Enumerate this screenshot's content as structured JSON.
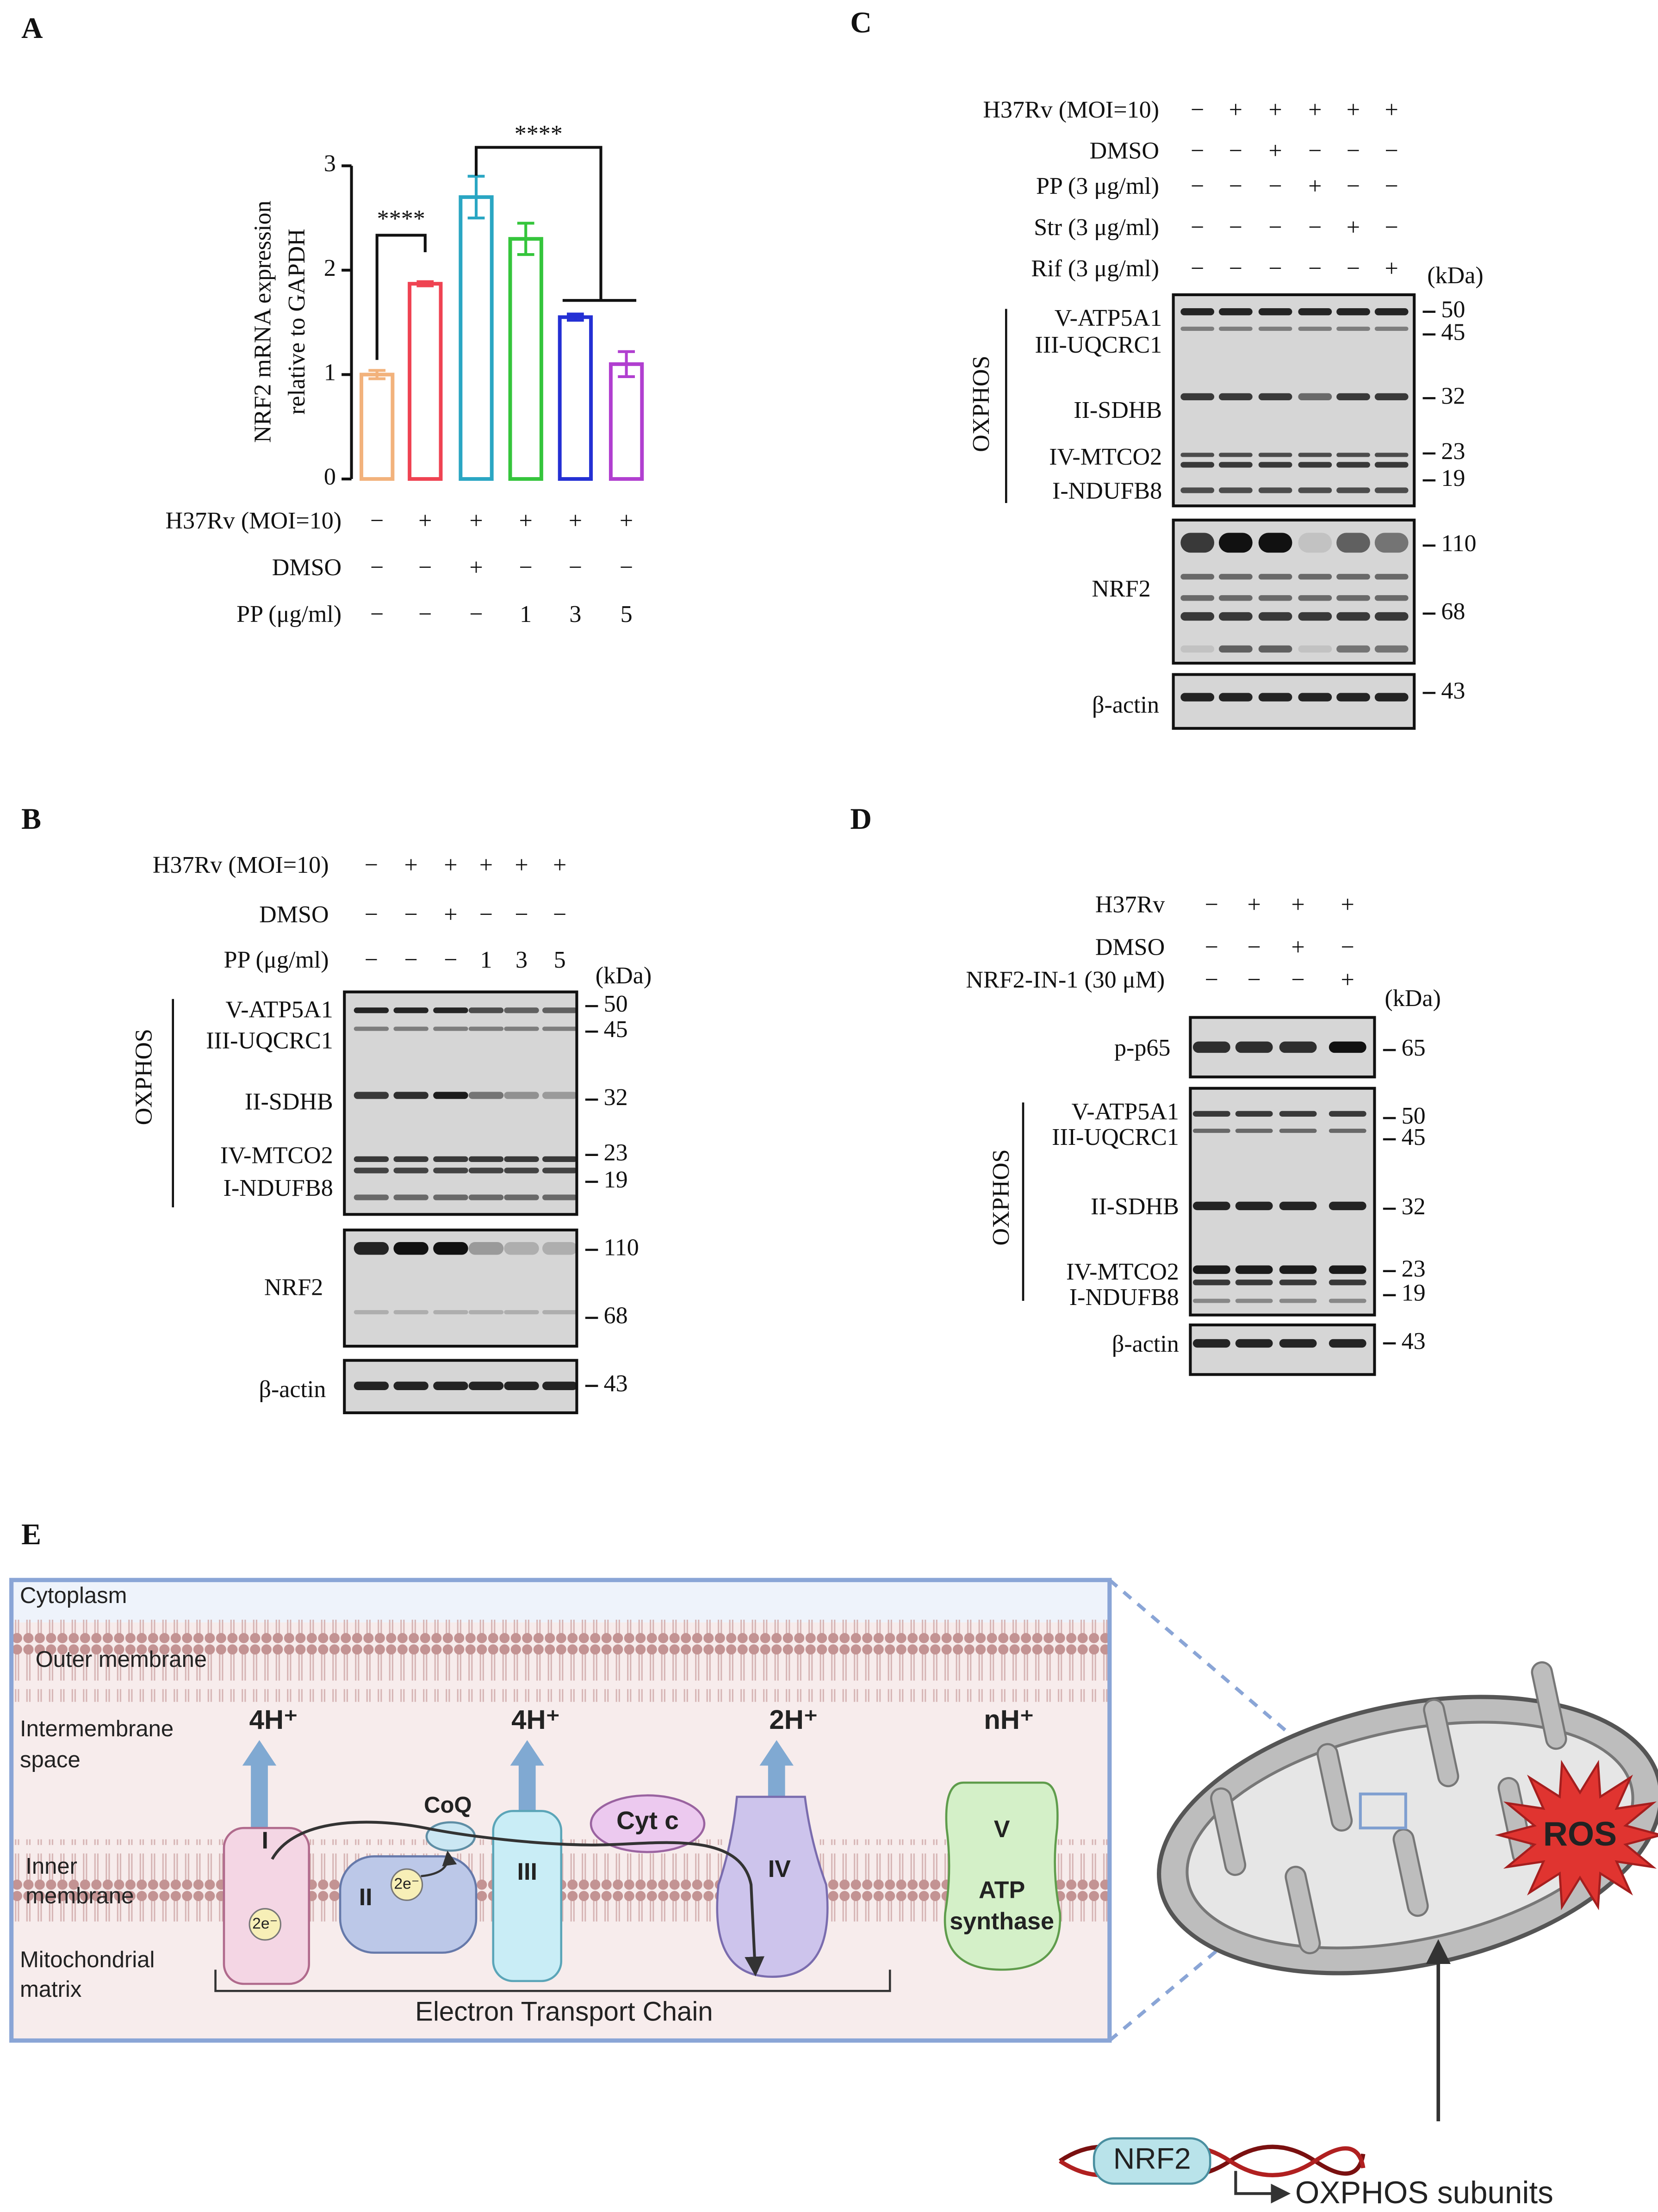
{
  "panel_labels": [
    "A",
    "B",
    "C",
    "D",
    "E"
  ],
  "chart_data": {
    "type": "bar",
    "y_label": [
      "NRF2 mRNA expression",
      "relative to GAPDH"
    ],
    "values": [
      1.0,
      1.87,
      2.7,
      2.3,
      1.55,
      1.1
    ],
    "errors": [
      0.04,
      0.02,
      0.2,
      0.15,
      0.03,
      0.12
    ],
    "colors": [
      "#f2b27c",
      "#ef4352",
      "#2aa6c3",
      "#35c53c",
      "#2430d4",
      "#b13fd0"
    ],
    "ylim": [
      0,
      3
    ],
    "yticks": [
      0,
      1,
      2,
      3
    ],
    "annotations": [
      "****",
      "****"
    ]
  },
  "panel_a": {
    "treatments": [
      {
        "label": "H37Rv (MOI=10)",
        "marks": [
          "−",
          "+",
          "+",
          "+",
          "+",
          "+"
        ]
      },
      {
        "label": "DMSO",
        "marks": [
          "−",
          "−",
          "+",
          "−",
          "−",
          "−"
        ]
      },
      {
        "label": "PP (μg/ml)",
        "marks": [
          "−",
          "−",
          "−",
          "1",
          "3",
          "5"
        ]
      }
    ]
  },
  "panel_b": {
    "treatments": [
      {
        "label": "H37Rv (MOI=10)",
        "marks": [
          "−",
          "+",
          "+",
          "+",
          "+",
          "+"
        ]
      },
      {
        "label": "DMSO",
        "marks": [
          "−",
          "−",
          "+",
          "−",
          "−",
          "−"
        ]
      },
      {
        "label": "PP (μg/ml)",
        "marks": [
          "−",
          "−",
          "−",
          "1",
          "3",
          "5"
        ]
      }
    ],
    "kda": "(kDa)",
    "group": "OXPHOS",
    "blots": [
      {
        "labels": [
          "V-ATP5A1",
          "III-UQCRC1",
          "II-SDHB",
          "IV-MTCO2",
          "I-NDUFB8"
        ],
        "markers": [
          "50",
          "45",
          "32",
          "23",
          "19"
        ]
      },
      {
        "labels": [
          "NRF2"
        ],
        "markers": [
          "110",
          "68"
        ]
      },
      {
        "labels": [
          "β-actin"
        ],
        "markers": [
          "43"
        ]
      }
    ]
  },
  "panel_c": {
    "treatments": [
      {
        "label": "H37Rv (MOI=10)",
        "marks": [
          "−",
          "+",
          "+",
          "+",
          "+",
          "+"
        ]
      },
      {
        "label": "DMSO",
        "marks": [
          "−",
          "−",
          "+",
          "−",
          "−",
          "−"
        ]
      },
      {
        "label": "PP (3 μg/ml)",
        "marks": [
          "−",
          "−",
          "−",
          "+",
          "−",
          "−"
        ]
      },
      {
        "label": "Str (3 μg/ml)",
        "marks": [
          "−",
          "−",
          "−",
          "−",
          "+",
          "−"
        ]
      },
      {
        "label": "Rif (3 μg/ml)",
        "marks": [
          "−",
          "−",
          "−",
          "−",
          "−",
          "+"
        ]
      }
    ],
    "kda": "(kDa)",
    "group": "OXPHOS",
    "blots": [
      {
        "labels": [
          "V-ATP5A1",
          "III-UQCRC1",
          "II-SDHB",
          "IV-MTCO2",
          "I-NDUFB8"
        ],
        "markers": [
          "50",
          "45",
          "32",
          "23",
          "19"
        ]
      },
      {
        "labels": [
          "NRF2"
        ],
        "markers": [
          "110",
          "68"
        ]
      },
      {
        "labels": [
          "β-actin"
        ],
        "markers": [
          "43"
        ]
      }
    ]
  },
  "panel_d": {
    "treatments": [
      {
        "label": "H37Rv",
        "marks": [
          "−",
          "+",
          "+",
          "+"
        ]
      },
      {
        "label": "DMSO",
        "marks": [
          "−",
          "−",
          "+",
          "−"
        ]
      },
      {
        "label": "NRF2-IN-1 (30 μM)",
        "marks": [
          "−",
          "−",
          "−",
          "+"
        ]
      }
    ],
    "kda": "(kDa)",
    "group": "OXPHOS",
    "blots": [
      {
        "labels": [
          "p-p65"
        ],
        "markers": [
          "65"
        ]
      },
      {
        "labels": [
          "V-ATP5A1",
          "III-UQCRC1",
          "II-SDHB",
          "IV-MTCO2",
          "I-NDUFB8"
        ],
        "markers": [
          "50",
          "45",
          "32",
          "23",
          "19"
        ]
      },
      {
        "labels": [
          "β-actin"
        ],
        "markers": [
          "43"
        ]
      }
    ]
  },
  "panel_e": {
    "regions": [
      "Cytoplasm",
      "Outer membrane",
      "Intermembrane",
      "space",
      "Inner",
      "membrane",
      "Mitochondrial",
      "matrix"
    ],
    "protons": [
      "4H⁺",
      "4H⁺",
      "2H⁺",
      "nH⁺"
    ],
    "complexes": [
      "I",
      "II",
      "III",
      "IV",
      "V"
    ],
    "atp": [
      "ATP",
      "synthase"
    ],
    "carriers": [
      "CoQ",
      "Cyt c"
    ],
    "electrons": [
      "2e⁻",
      "2e⁻"
    ],
    "chain": "Electron Transport Chain",
    "ros": "ROS",
    "factor": "NRF2",
    "target": "OXPHOS subunits"
  }
}
